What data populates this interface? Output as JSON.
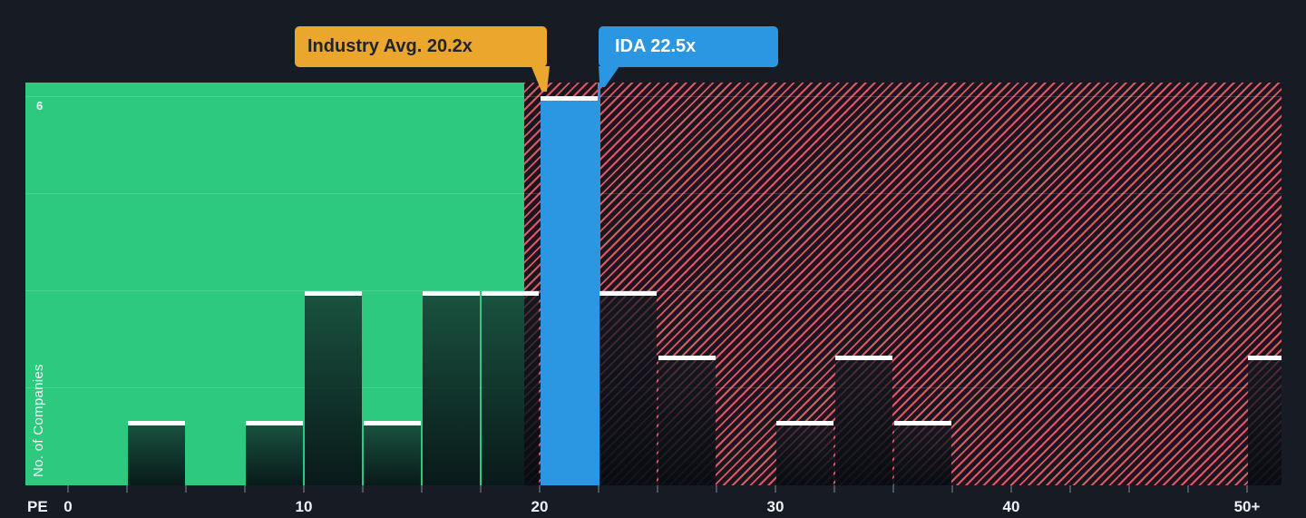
{
  "chart_data": {
    "type": "bar",
    "subtype": "histogram",
    "title": "",
    "xlabel": "PE",
    "ylabel": "No. of Companies",
    "y_max_gridline_label": "6",
    "y_range": [
      0,
      6.2
    ],
    "gridline_values": [
      1.5,
      3,
      4.5,
      6
    ],
    "x_range": [
      0,
      52.5
    ],
    "minor_tick_step": 2.5,
    "bin_width": 2.5,
    "x_major_ticks": [
      {
        "value": 0,
        "label": "0"
      },
      {
        "value": 10,
        "label": "10"
      },
      {
        "value": 20,
        "label": "20"
      },
      {
        "value": 30,
        "label": "30"
      },
      {
        "value": 40,
        "label": "40"
      },
      {
        "value": 50,
        "label": "50+"
      }
    ],
    "bins": [
      {
        "range": [
          2.5,
          5
        ],
        "count": 1,
        "highlight": false
      },
      {
        "range": [
          7.5,
          10
        ],
        "count": 1,
        "highlight": false
      },
      {
        "range": [
          10,
          12.5
        ],
        "count": 3,
        "highlight": false
      },
      {
        "range": [
          12.5,
          15
        ],
        "count": 1,
        "highlight": false
      },
      {
        "range": [
          15,
          17.5
        ],
        "count": 3,
        "highlight": false
      },
      {
        "range": [
          17.5,
          20
        ],
        "count": 3,
        "highlight": false
      },
      {
        "range": [
          20,
          22.5
        ],
        "count": 6,
        "highlight": true
      },
      {
        "range": [
          22.5,
          25
        ],
        "count": 3,
        "highlight": false
      },
      {
        "range": [
          25,
          27.5
        ],
        "count": 2,
        "highlight": false
      },
      {
        "range": [
          30,
          32.5
        ],
        "count": 1,
        "highlight": false
      },
      {
        "range": [
          32.5,
          35
        ],
        "count": 2,
        "highlight": false
      },
      {
        "range": [
          35,
          37.5
        ],
        "count": 1,
        "highlight": false
      },
      {
        "range": [
          50,
          52.5
        ],
        "count": 2,
        "highlight": false,
        "open_ended": true
      }
    ],
    "annotations": {
      "industry_avg": {
        "label": "Industry Avg. 20.2x",
        "value": 20.2
      },
      "company": {
        "label": "IDA 22.5x",
        "value": 22.5
      }
    },
    "zones": {
      "below_average_zone_end": 19.4,
      "legend_position": "none",
      "grid": "on"
    }
  },
  "colors": {
    "background": "#161b24",
    "green_zone": "#2dc97e",
    "hatch_background": "#1c1420",
    "hatch_stripe": "#dc5a60",
    "highlight_bar": "#2b96e2",
    "bar_cap": "#ffffff",
    "industry_callout": "#eba62d",
    "industry_callout_text": "#20252b",
    "company_callout": "#2b96e2",
    "company_callout_text": "#ffffff",
    "gridline": "rgba(255,255,255,0.15)",
    "axis_label": "#eef1f4",
    "tick": "#4d545e"
  }
}
